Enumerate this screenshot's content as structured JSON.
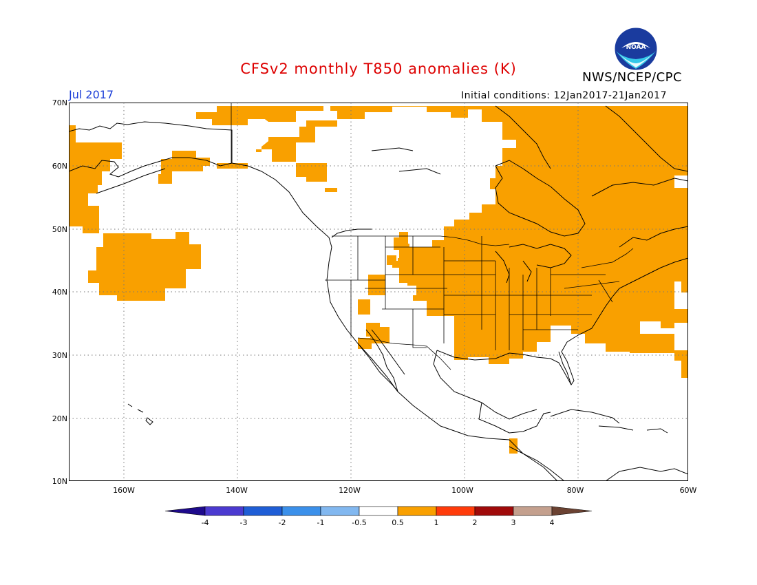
{
  "header": {
    "title": "CFSv2 monthly T850 anomalies (K)",
    "title_color": "#dd0000",
    "month": "Jul 2017",
    "month_color": "#1c3fd8",
    "initial_conditions": "Initial conditions: 12Jan2017-21Jan2017",
    "agency": "NWS/NCEP/CPC",
    "logo_text": "NOAA"
  },
  "map": {
    "latitude_labels": [
      "70N",
      "60N",
      "50N",
      "40N",
      "30N",
      "20N",
      "10N"
    ],
    "longitude_labels": [
      "160W",
      "140W",
      "120W",
      "100W",
      "80W",
      "60W"
    ],
    "anomaly_fill_color": "#f9a000",
    "gridlines": "dotted"
  },
  "colorbar": {
    "ticks": [
      "-4",
      "-3",
      "-2",
      "-1",
      "-0.5",
      "0.5",
      "1",
      "2",
      "3",
      "4"
    ],
    "colors": [
      "#1e0a8c",
      "#4b3ad0",
      "#1f5ed6",
      "#3b90ea",
      "#82b8f0",
      "#ffffff",
      "#f9a000",
      "#ff3b0a",
      "#a00a0a",
      "#c4a08e",
      "#6b4232"
    ]
  }
}
